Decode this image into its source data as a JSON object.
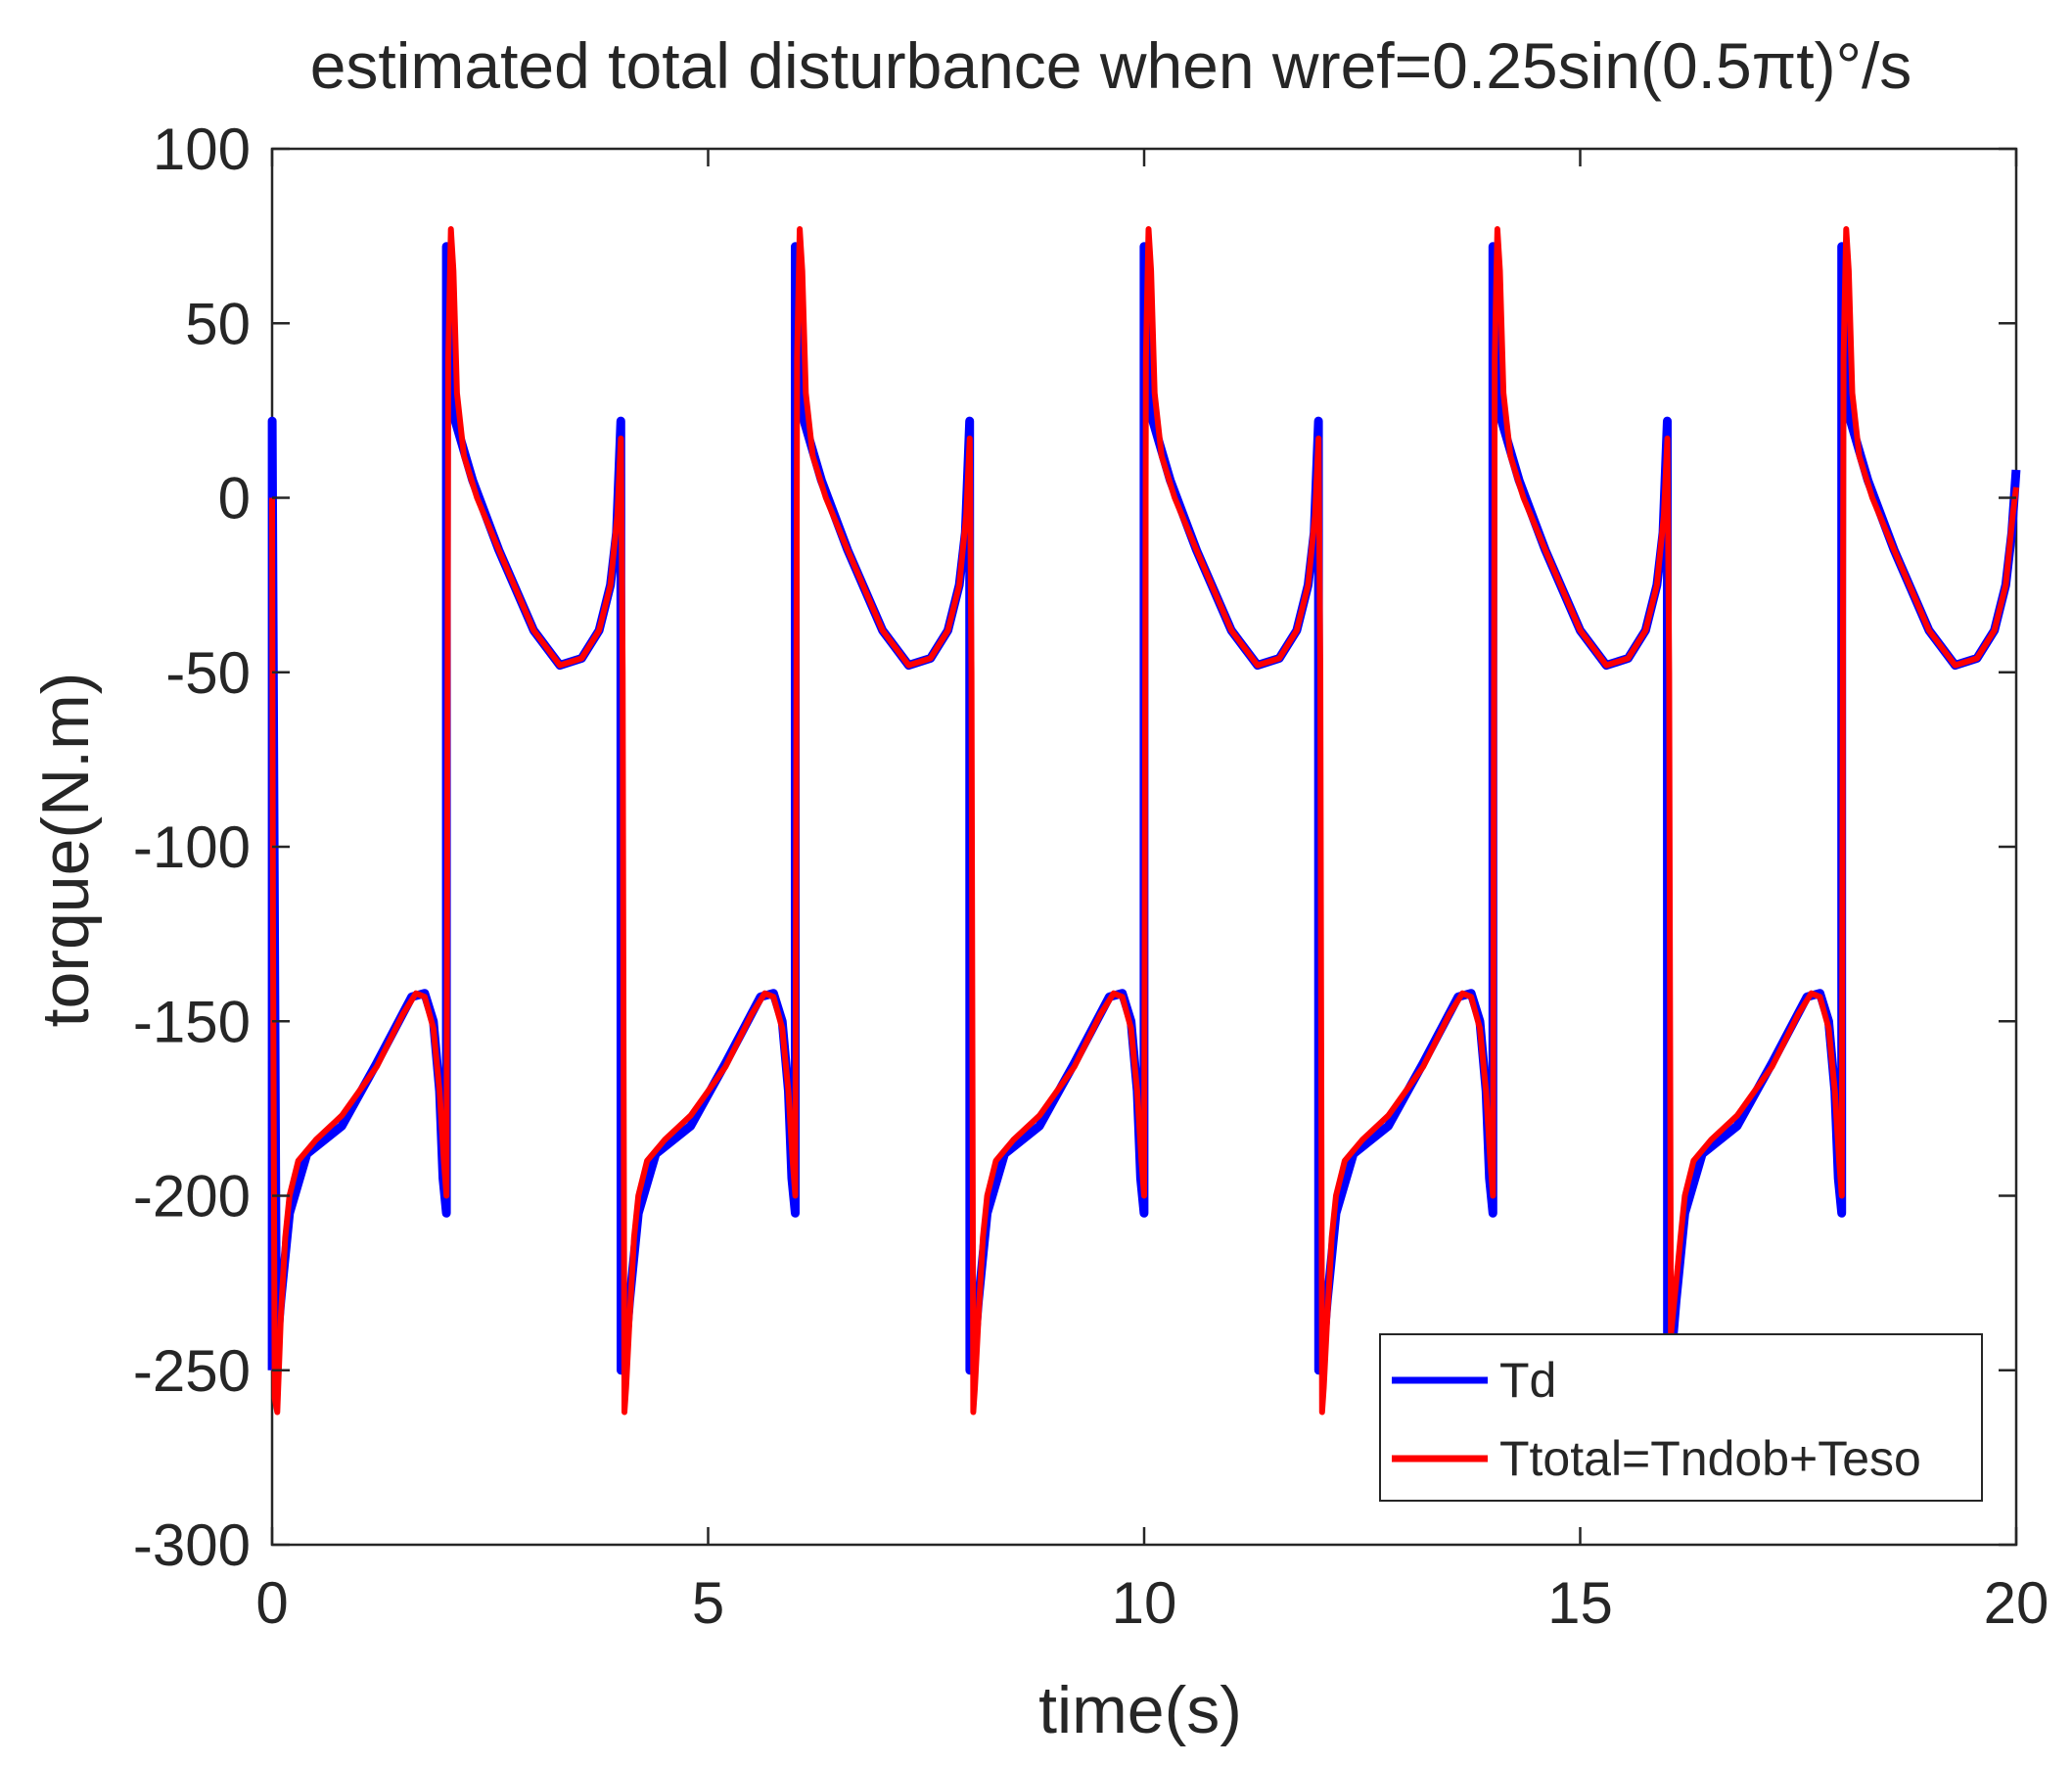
{
  "chart_data": {
    "type": "line",
    "title": "estimated total disturbance when wref=0.25sin(0.5πt)°/s",
    "xlabel": "time(s)",
    "ylabel": "torque(N.m)",
    "xlim": [
      0,
      20
    ],
    "ylim": [
      -300,
      100
    ],
    "xticks": [
      0,
      5,
      10,
      15,
      20
    ],
    "xtick_labels": [
      "0",
      "5",
      "10",
      "15",
      "20"
    ],
    "yticks": [
      100,
      50,
      0,
      -50,
      -100,
      -150,
      -200,
      -250,
      -300
    ],
    "ytick_labels": [
      "100",
      "50",
      "0",
      "-50",
      "-100",
      "-150",
      "-200",
      "-250",
      "-300"
    ],
    "grid": false,
    "legend_position": "bottom-right",
    "period": 4,
    "series": [
      {
        "name": "Td",
        "color": "#0000ff",
        "x": [
          0,
          0.001,
          0.001,
          0.05,
          0.1,
          0.2,
          0.4,
          0.8,
          1.2,
          1.6,
          1.75,
          1.85,
          1.92,
          1.96,
          1.999,
          1.999,
          2.03,
          2.06,
          2.1,
          2.3,
          2.6,
          3.0,
          3.3,
          3.55,
          3.75,
          3.88,
          3.95,
          3.999,
          3.999,
          4.001,
          4.001,
          4.05,
          4.1,
          4.2,
          4.4,
          4.8,
          5.2,
          5.6,
          5.75,
          5.85,
          5.92,
          5.96,
          5.999,
          5.999,
          6.03,
          6.06,
          6.1,
          6.3,
          6.6,
          7.0,
          7.3,
          7.55,
          7.75,
          7.88,
          7.95,
          7.999,
          7.999,
          8.001,
          8.001,
          8.05,
          8.1,
          8.2,
          8.4,
          8.8,
          9.2,
          9.6,
          9.75,
          9.85,
          9.92,
          9.96,
          9.999,
          9.999,
          10.03,
          10.06,
          10.1,
          10.3,
          10.6,
          11.0,
          11.3,
          11.55,
          11.75,
          11.88,
          11.95,
          11.999,
          11.999,
          12.001,
          12.001,
          12.05,
          12.1,
          12.2,
          12.4,
          12.8,
          13.2,
          13.6,
          13.75,
          13.85,
          13.92,
          13.96,
          13.999,
          13.999,
          14.03,
          14.06,
          14.1,
          14.3,
          14.6,
          15.0,
          15.3,
          15.55,
          15.75,
          15.88,
          15.95,
          15.999,
          15.999,
          16.001,
          16.001,
          16.05,
          16.1,
          16.2,
          16.4,
          16.8,
          17.2,
          17.6,
          17.75,
          17.85,
          17.92,
          17.96,
          17.999,
          17.999,
          18.03,
          18.06,
          18.1,
          18.3,
          18.6,
          19.0,
          19.3,
          19.55,
          19.75,
          19.88,
          19.95,
          19.999,
          19.999
        ],
        "y": [
          -250,
          -250,
          22,
          -245,
          -230,
          -205,
          -188,
          -180,
          -162,
          -143,
          -142,
          -150,
          -170,
          -195,
          -205,
          72,
          68,
          45,
          22,
          5,
          -15,
          -38,
          -48,
          -46,
          -38,
          -25,
          -10,
          22,
          22,
          -250,
          -250,
          -245,
          -230,
          -205,
          -188,
          -180,
          -162,
          -143,
          -142,
          -150,
          -170,
          -195,
          -205,
          72,
          68,
          45,
          22,
          5,
          -15,
          -38,
          -48,
          -46,
          -38,
          -25,
          -10,
          22,
          22,
          -250,
          -250,
          -245,
          -230,
          -205,
          -188,
          -180,
          -162,
          -143,
          -142,
          -150,
          -170,
          -195,
          -205,
          72,
          68,
          45,
          22,
          5,
          -15,
          -38,
          -48,
          -46,
          -38,
          -25,
          -10,
          22,
          22,
          -250,
          -250,
          -245,
          -230,
          -205,
          -188,
          -180,
          -162,
          -143,
          -142,
          -150,
          -170,
          -195,
          -205,
          72,
          68,
          45,
          22,
          5,
          -15,
          -38,
          -48,
          -46,
          -38,
          -25,
          -10,
          22,
          22,
          -250,
          -250,
          -245,
          -230,
          -205,
          -188,
          -180,
          -162,
          -143,
          -142,
          -150,
          -170,
          -195,
          -205,
          72,
          68,
          45,
          22,
          5,
          -15,
          -38,
          -48,
          -46,
          -38,
          -25,
          -10,
          8,
          8
        ]
      },
      {
        "name": "Ttotal=Tndob+Teso",
        "color": "#ff0000",
        "x": [
          0,
          0.01,
          0.03,
          0.06,
          0.1,
          0.15,
          0.2,
          0.3,
          0.5,
          0.8,
          1.2,
          1.5,
          1.65,
          1.75,
          1.85,
          1.92,
          1.97,
          2.0,
          2.02,
          2.05,
          2.08,
          2.12,
          2.2,
          2.35,
          2.6,
          3.0,
          3.3,
          3.55,
          3.75,
          3.88,
          3.96,
          4.0,
          4.02,
          4.04,
          4.06,
          4.1,
          4.15,
          4.2,
          4.3,
          4.5,
          4.8,
          5.2,
          5.5,
          5.65,
          5.75,
          5.85,
          5.92,
          5.97,
          6.0,
          6.02,
          6.05,
          6.08,
          6.12,
          6.2,
          6.35,
          6.6,
          7.0,
          7.3,
          7.55,
          7.75,
          7.88,
          7.96,
          8.0,
          8.02,
          8.04,
          8.06,
          8.1,
          8.15,
          8.2,
          8.3,
          8.5,
          8.8,
          9.2,
          9.5,
          9.65,
          9.75,
          9.85,
          9.92,
          9.97,
          10.0,
          10.02,
          10.05,
          10.08,
          10.12,
          10.2,
          10.35,
          10.6,
          11.0,
          11.3,
          11.55,
          11.75,
          11.88,
          11.96,
          12.0,
          12.02,
          12.04,
          12.06,
          12.1,
          12.15,
          12.2,
          12.3,
          12.5,
          12.8,
          13.2,
          13.5,
          13.65,
          13.75,
          13.85,
          13.92,
          13.97,
          14.0,
          14.02,
          14.05,
          14.08,
          14.12,
          14.2,
          14.35,
          14.6,
          15.0,
          15.3,
          15.55,
          15.75,
          15.88,
          15.96,
          16.0,
          16.02,
          16.04,
          16.06,
          16.1,
          16.15,
          16.2,
          16.3,
          16.5,
          16.8,
          17.2,
          17.5,
          17.65,
          17.75,
          17.85,
          17.92,
          17.97,
          18.0,
          18.02,
          18.05,
          18.08,
          18.12,
          18.2,
          18.35,
          18.6,
          19.0,
          19.3,
          19.55,
          19.75,
          19.88,
          19.96,
          20.0
        ],
        "y": [
          0,
          -120,
          -258,
          -262,
          -235,
          -212,
          -200,
          -190,
          -184,
          -177,
          -163,
          -148,
          -142,
          -143,
          -152,
          -170,
          -190,
          -200,
          40,
          77,
          65,
          30,
          12,
          0,
          -15,
          -38,
          -48,
          -46,
          -38,
          -25,
          -5,
          17,
          -50,
          -262,
          -255,
          -235,
          -212,
          -200,
          -190,
          -184,
          -177,
          -163,
          -148,
          -142,
          -143,
          -152,
          -170,
          -190,
          -200,
          40,
          77,
          65,
          30,
          12,
          0,
          -15,
          -38,
          -48,
          -46,
          -38,
          -25,
          -5,
          17,
          -50,
          -262,
          -255,
          -235,
          -212,
          -200,
          -190,
          -184,
          -177,
          -163,
          -148,
          -142,
          -143,
          -152,
          -170,
          -190,
          -200,
          40,
          77,
          65,
          30,
          12,
          0,
          -15,
          -38,
          -48,
          -46,
          -38,
          -25,
          -5,
          17,
          -50,
          -262,
          -255,
          -235,
          -212,
          -200,
          -190,
          -184,
          -177,
          -163,
          -148,
          -142,
          -143,
          -152,
          -170,
          -190,
          -200,
          40,
          77,
          65,
          30,
          12,
          0,
          -15,
          -38,
          -48,
          -46,
          -38,
          -25,
          -5,
          17,
          -50,
          -240,
          -235,
          -225,
          -212,
          -200,
          -190,
          -184,
          -177,
          -163,
          -148,
          -142,
          -143,
          -152,
          -170,
          -190,
          -200,
          40,
          77,
          65,
          30,
          12,
          0,
          -15,
          -38,
          -48,
          -46,
          -38,
          -25,
          -5,
          3
        ]
      }
    ]
  }
}
